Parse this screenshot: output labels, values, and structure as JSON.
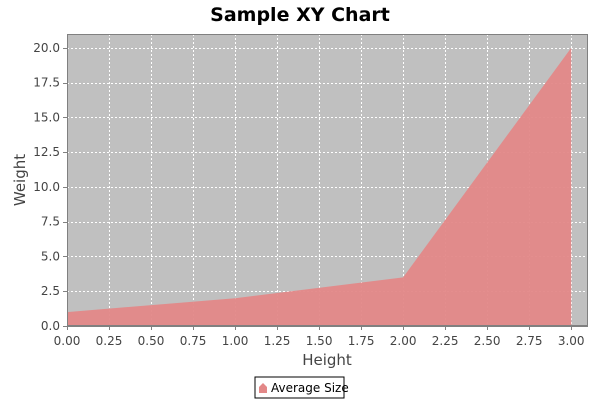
{
  "chart_data": {
    "type": "area",
    "title": "Sample XY Chart",
    "xlabel": "Height",
    "ylabel": "Weight",
    "xlim": [
      0,
      3.1
    ],
    "ylim": [
      0,
      21
    ],
    "x_ticks": [
      "0.00",
      "0.25",
      "0.50",
      "0.75",
      "1.00",
      "1.25",
      "1.50",
      "1.75",
      "2.00",
      "2.25",
      "2.50",
      "2.75",
      "3.00"
    ],
    "y_ticks": [
      "0.0",
      "2.5",
      "5.0",
      "7.5",
      "10.0",
      "12.5",
      "15.0",
      "17.5",
      "20.0"
    ],
    "grid": true,
    "legend_position": "bottom-center",
    "plot_background": "#c0c0c0",
    "series": [
      {
        "name": "Average Size",
        "color": "#e38888",
        "x": [
          0,
          1,
          2,
          3
        ],
        "y": [
          1,
          2,
          3.5,
          20
        ]
      }
    ]
  }
}
